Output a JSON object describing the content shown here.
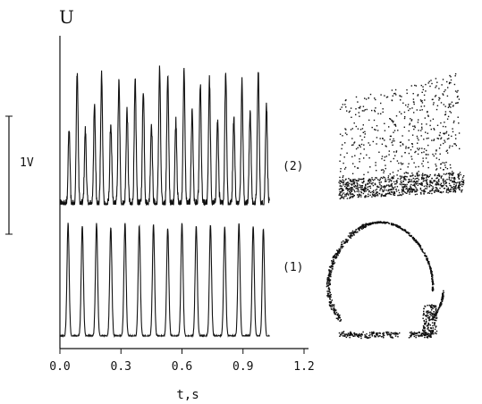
{
  "chart_data": {
    "type": "line",
    "ylabel": "U",
    "xlabel": "t,s",
    "xlim": [
      0.0,
      1.2
    ],
    "x_ticks": [
      "0.0",
      "0.3",
      "0.6",
      "0.9",
      "1.2"
    ],
    "scale_bar_label": "1V",
    "series": [
      {
        "name": "(2)",
        "t_end": 1.03,
        "peaks": [
          {
            "t": 0.045,
            "amp": 0.55
          },
          {
            "t": 0.085,
            "amp": 0.98
          },
          {
            "t": 0.125,
            "amp": 0.55
          },
          {
            "t": 0.17,
            "amp": 0.72
          },
          {
            "t": 0.205,
            "amp": 0.95
          },
          {
            "t": 0.25,
            "amp": 0.6
          },
          {
            "t": 0.29,
            "amp": 0.9
          },
          {
            "t": 0.33,
            "amp": 0.7
          },
          {
            "t": 0.37,
            "amp": 0.9
          },
          {
            "t": 0.41,
            "amp": 0.85
          },
          {
            "t": 0.45,
            "amp": 0.6
          },
          {
            "t": 0.49,
            "amp": 1.0
          },
          {
            "t": 0.53,
            "amp": 0.95
          },
          {
            "t": 0.57,
            "amp": 0.62
          },
          {
            "t": 0.61,
            "amp": 0.98
          },
          {
            "t": 0.65,
            "amp": 0.7
          },
          {
            "t": 0.69,
            "amp": 0.88
          },
          {
            "t": 0.735,
            "amp": 0.92
          },
          {
            "t": 0.775,
            "amp": 0.62
          },
          {
            "t": 0.815,
            "amp": 0.98
          },
          {
            "t": 0.855,
            "amp": 0.65
          },
          {
            "t": 0.895,
            "amp": 0.92
          },
          {
            "t": 0.935,
            "amp": 0.7
          },
          {
            "t": 0.975,
            "amp": 0.98
          },
          {
            "t": 1.015,
            "amp": 0.75
          }
        ]
      },
      {
        "name": "(1)",
        "t_end": 1.03,
        "peaks": [
          {
            "t": 0.04,
            "amp": 1.0
          },
          {
            "t": 0.11,
            "amp": 0.98
          },
          {
            "t": 0.18,
            "amp": 1.0
          },
          {
            "t": 0.25,
            "amp": 0.97
          },
          {
            "t": 0.32,
            "amp": 1.0
          },
          {
            "t": 0.39,
            "amp": 0.98
          },
          {
            "t": 0.46,
            "amp": 0.99
          },
          {
            "t": 0.53,
            "amp": 0.96
          },
          {
            "t": 0.6,
            "amp": 1.0
          },
          {
            "t": 0.67,
            "amp": 0.98
          },
          {
            "t": 0.74,
            "amp": 0.99
          },
          {
            "t": 0.81,
            "amp": 0.97
          },
          {
            "t": 0.88,
            "amp": 1.0
          },
          {
            "t": 0.95,
            "amp": 0.98
          },
          {
            "t": 1.0,
            "amp": 0.95
          }
        ]
      }
    ],
    "phase_portraits": [
      {
        "name": "(2)",
        "kind": "scattered-cloud"
      },
      {
        "name": "(1)",
        "kind": "closed-loop"
      }
    ]
  }
}
